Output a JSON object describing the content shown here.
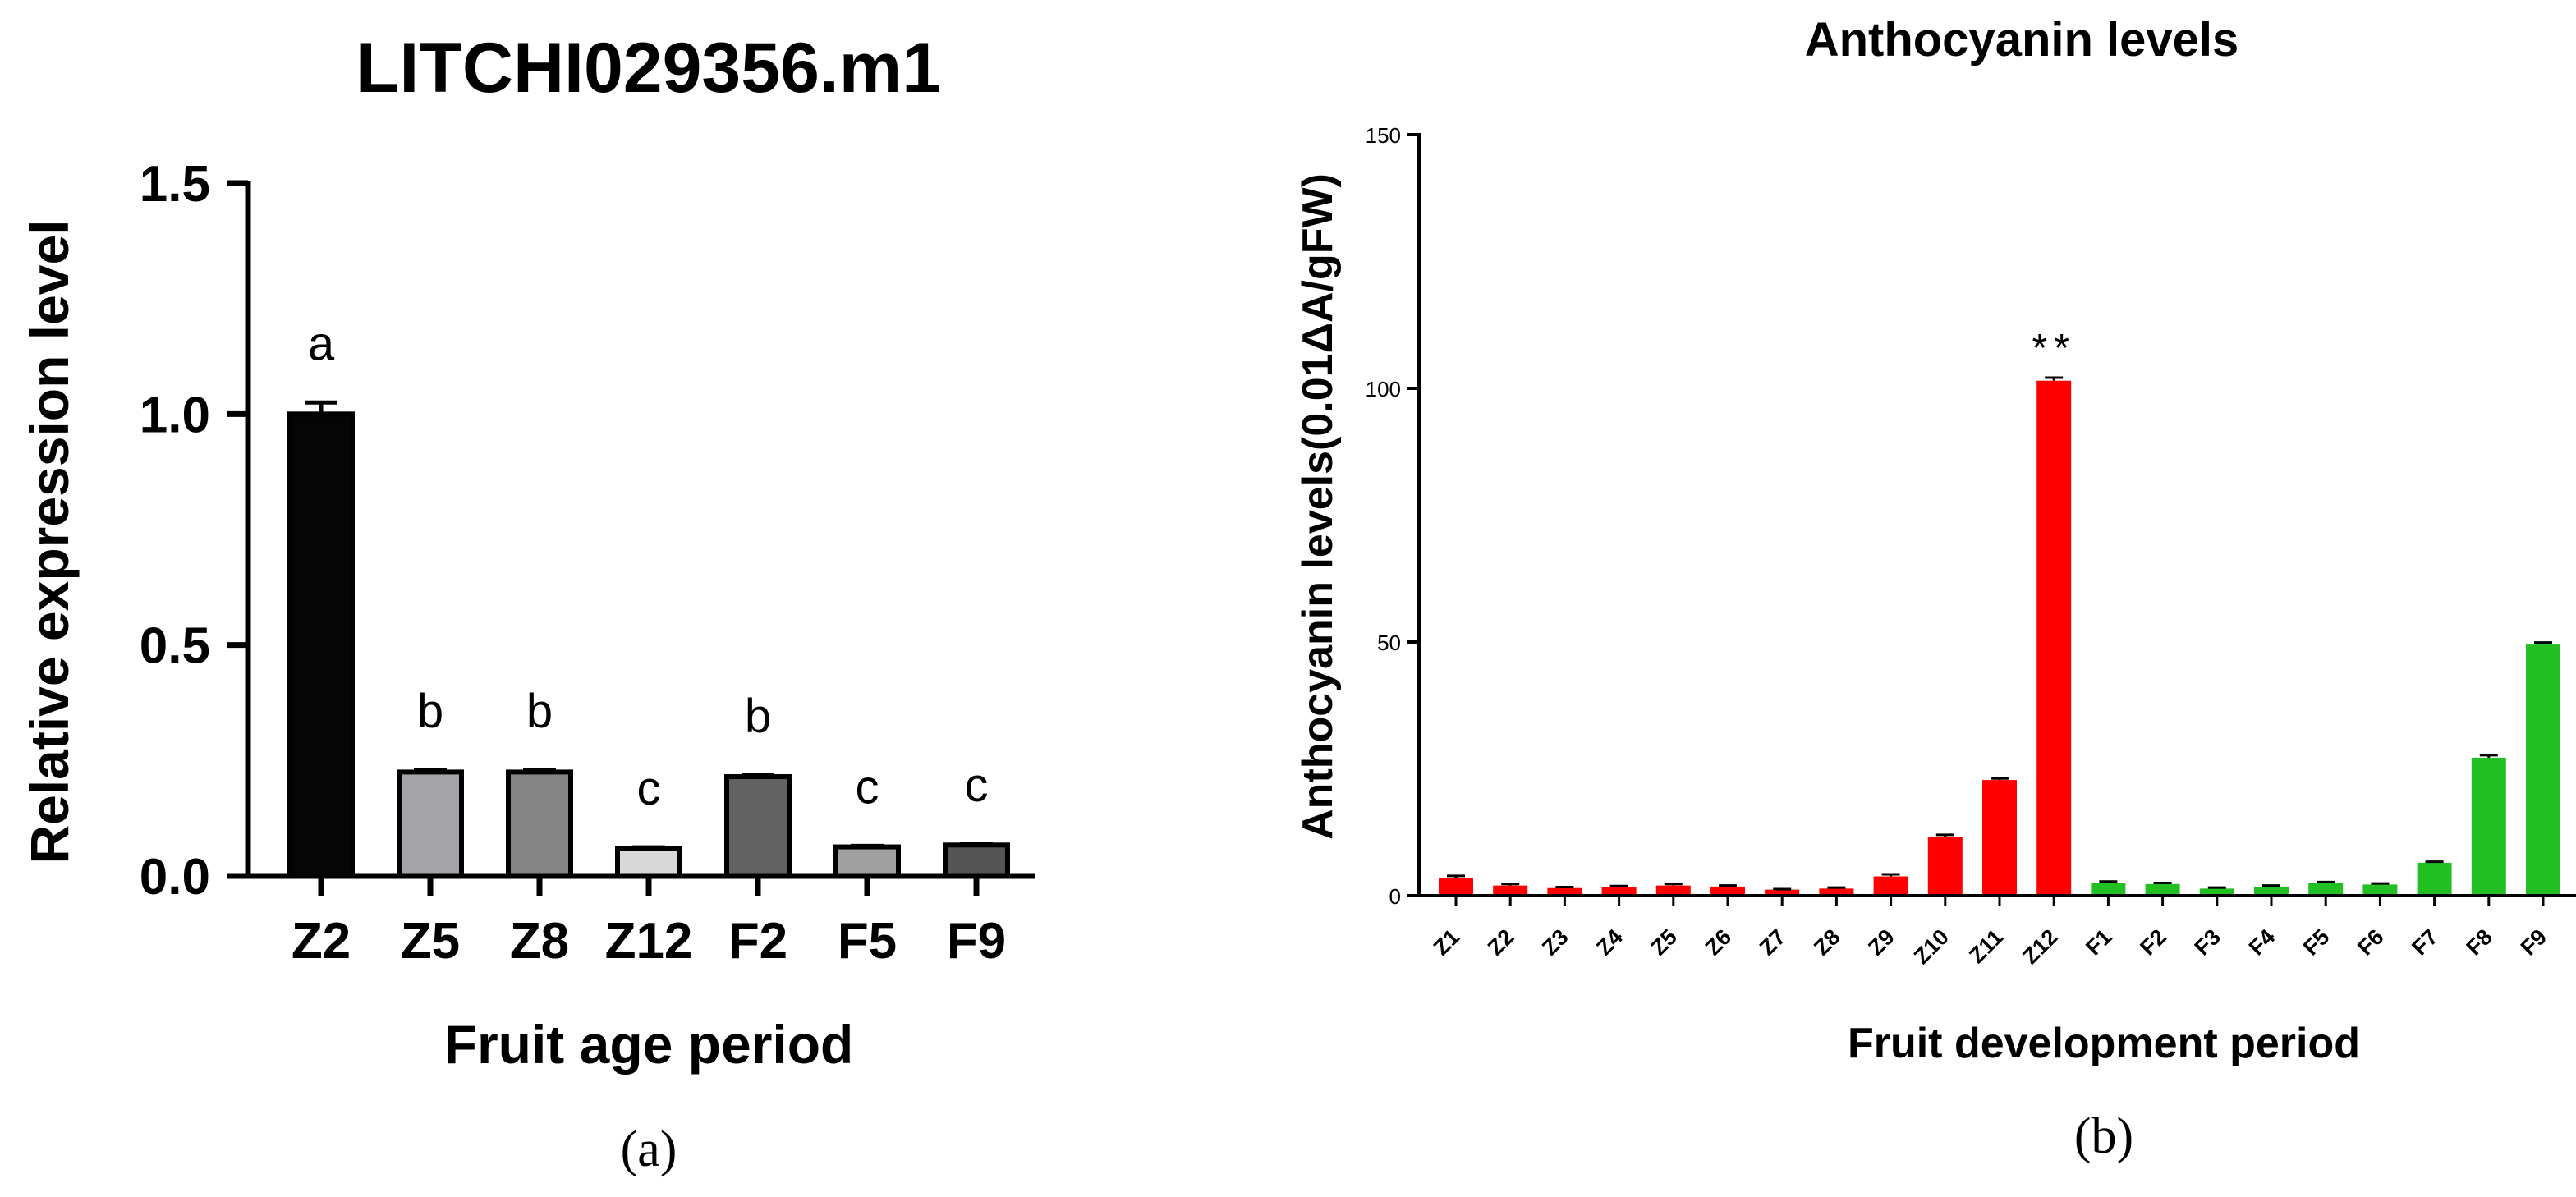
{
  "colors": {
    "axis": "#000000",
    "panel_b_red": "#ff0000",
    "panel_b_green": "#22c022"
  },
  "chart_data": [
    {
      "panel_label": "(a)",
      "type": "bar",
      "title": "LITCHI029356.m1",
      "xlabel": "Fruit age period",
      "ylabel": "Relative expression level",
      "ylim": [
        0,
        1.5
      ],
      "yticks": [
        "0.0",
        "0.5",
        "1.0",
        "1.5"
      ],
      "ytick_values": [
        0,
        0.5,
        1.0,
        1.5
      ],
      "categories": [
        "Z2",
        "Z5",
        "Z8",
        "Z12",
        "F2",
        "F5",
        "F9"
      ],
      "values": [
        1.0,
        0.225,
        0.225,
        0.06,
        0.215,
        0.063,
        0.067
      ],
      "errors": [
        0.025,
        0.004,
        0.004,
        0.002,
        0.004,
        0.002,
        0.002
      ],
      "significance_letters": [
        "a",
        "b",
        "b",
        "c",
        "b",
        "c",
        "c"
      ],
      "bar_colors": [
        "#050505",
        "#a3a3a8",
        "#858585",
        "#d8d8d8",
        "#626262",
        "#a0a0a0",
        "#555555"
      ]
    },
    {
      "panel_label": "(b)",
      "type": "bar",
      "title": "Anthocyanin levels",
      "xlabel": "Fruit development period",
      "ylabel": "Anthocyanin levels(0.01ΔA/gFW)",
      "ylim": [
        0,
        150
      ],
      "yticks": [
        "0",
        "50",
        "100",
        "150"
      ],
      "ytick_values": [
        0,
        50,
        100,
        150
      ],
      "categories": [
        "Z1",
        "Z2",
        "Z3",
        "Z4",
        "Z5",
        "Z6",
        "Z7",
        "Z8",
        "Z9",
        "Z10",
        "Z11",
        "Z12",
        "F1",
        "F2",
        "F3",
        "F4",
        "F5",
        "F6",
        "F7",
        "F8",
        "F9"
      ],
      "values": [
        3.5,
        2.0,
        1.5,
        1.7,
        2.0,
        1.8,
        1.2,
        1.4,
        3.8,
        11.5,
        22.8,
        101.5,
        2.5,
        2.3,
        1.4,
        1.8,
        2.5,
        2.2,
        6.5,
        27.2,
        49.5
      ],
      "errors": [
        0.4,
        0.3,
        0.2,
        0.2,
        0.3,
        0.2,
        0.1,
        0.2,
        0.4,
        0.5,
        0.3,
        0.6,
        0.3,
        0.2,
        0.2,
        0.2,
        0.2,
        0.2,
        0.2,
        0.5,
        0.4
      ],
      "groups": [
        "red",
        "red",
        "red",
        "red",
        "red",
        "red",
        "red",
        "red",
        "red",
        "red",
        "red",
        "red",
        "green",
        "green",
        "green",
        "green",
        "green",
        "green",
        "green",
        "green",
        "green"
      ],
      "annotation": {
        "text": "**",
        "category": "Z12"
      }
    }
  ]
}
